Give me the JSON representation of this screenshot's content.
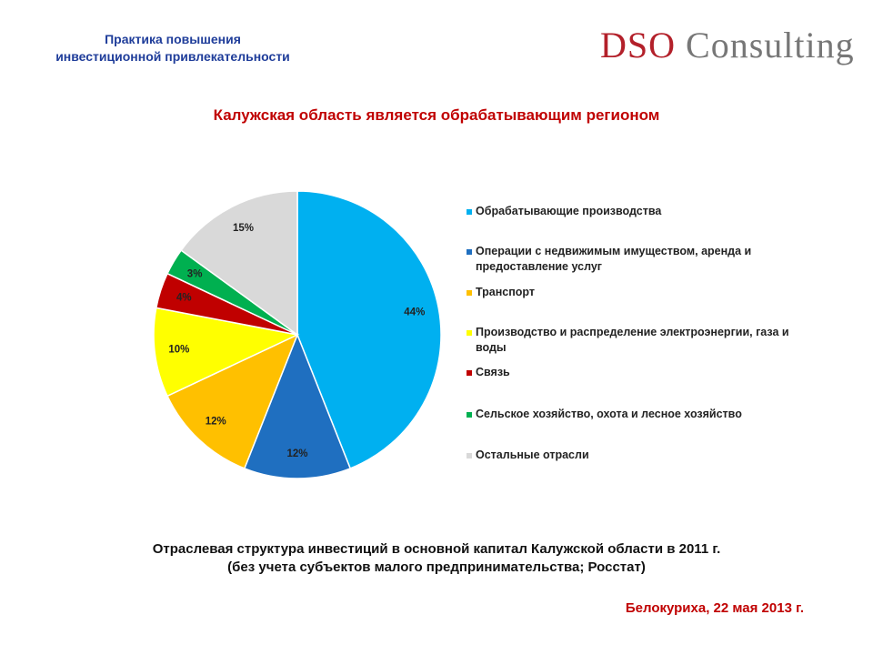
{
  "header": {
    "subtitle_lines": [
      "Практика повышения",
      "инвестиционной привлекательности"
    ],
    "logo": [
      "DSO",
      "Consulting"
    ]
  },
  "chart_data": {
    "type": "pie",
    "title": "Калужская область является обрабатывающим регионом",
    "categories": [
      "Обрабатывающие производства",
      "Операции с недвижимым имуществом, аренда и предоставление услуг",
      "Транспорт",
      "Производство и распределение электроэнергии, газа и воды",
      "Связь",
      "Сельское хозяйство, охота и лесное хозяйство",
      "Остальные отрасли"
    ],
    "values": [
      44,
      12,
      12,
      10,
      4,
      3,
      15
    ],
    "value_labels": [
      "44%",
      "12%",
      "12%",
      "10%",
      "4%",
      "3%",
      "15%"
    ],
    "colors": [
      "#00b0f0",
      "#1f6fc0",
      "#ffc000",
      "#ffff00",
      "#c00000",
      "#00b050",
      "#d9d9d9"
    ]
  },
  "caption": [
    "Отраслевая структура инвестиций в основной капитал Калужской области в 2011 г.",
    "(без учета субъектов малого предпринимательства; Росстат)"
  ],
  "footer": "Белокуриха, 22 мая 2013 г."
}
